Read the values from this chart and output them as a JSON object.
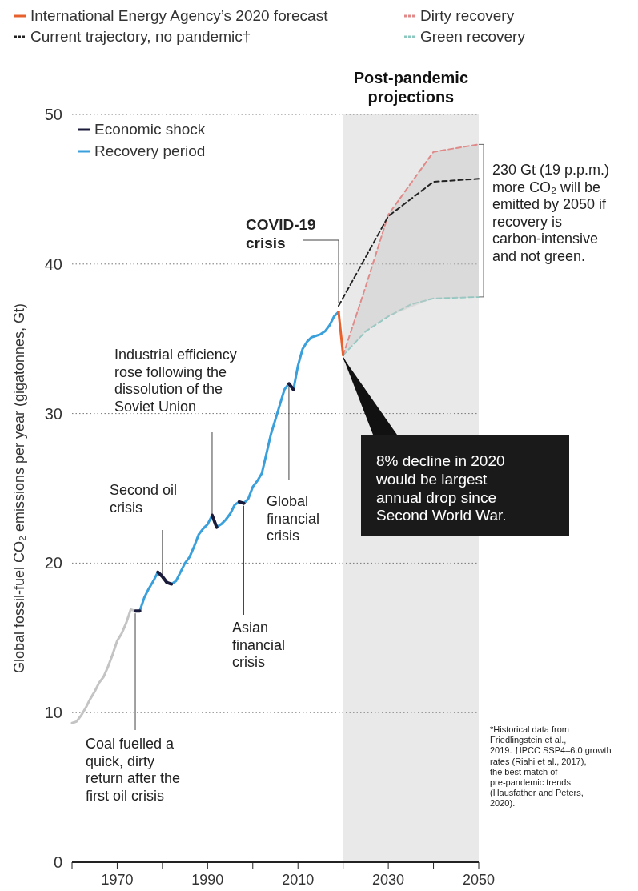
{
  "chart_data": {
    "type": "line",
    "ylabel": "Global fossil-fuel CO₂ emissions per year (gigatonnes, Gt)",
    "xlim": [
      1960,
      2050
    ],
    "ylim": [
      0,
      50
    ],
    "xticks": [
      {
        "value": 1960,
        "label": null
      },
      1970,
      {
        "value": 1980,
        "label": null
      },
      1990,
      {
        "value": 2000,
        "label": null
      },
      2010,
      {
        "value": 2020,
        "label": null
      },
      2030,
      {
        "value": 2040,
        "label": null
      },
      2050
    ],
    "yticks": [
      0,
      10,
      20,
      30,
      40,
      50
    ],
    "grid": "y",
    "legend": "top",
    "series": [
      {
        "name": "International Energy Agency’s 2020 forecast",
        "color": "#e8602c",
        "line_style": "solid",
        "x": [
          2019,
          2020
        ],
        "values": [
          36.8,
          33.9
        ]
      },
      {
        "name": "Current trajectory, no pandemic†",
        "color": "#222222",
        "line_style": "dashed",
        "x": [
          2019,
          2030,
          2040,
          2050
        ],
        "values": [
          37.2,
          43.2,
          45.5,
          45.7
        ]
      },
      {
        "name": "Dirty recovery",
        "color": "#e08a8a",
        "line_style": "dashed",
        "x": [
          2020,
          2025,
          2030,
          2040,
          2050
        ],
        "values": [
          33.9,
          38.5,
          43.3,
          47.5,
          48.0
        ],
        "lower": [
          33.9,
          35.5,
          36.5,
          37.7,
          37.8
        ],
        "upper": [
          33.9,
          38.5,
          43.3,
          47.5,
          48.0
        ]
      },
      {
        "name": "Green recovery",
        "color": "#8cc8c0",
        "line_style": "dashed",
        "x": [
          2020,
          2025,
          2030,
          2035,
          2040,
          2050
        ],
        "values": [
          33.9,
          35.5,
          36.5,
          37.3,
          37.7,
          37.8
        ]
      },
      {
        "name": "Economic shock",
        "color": "#1a1a3a",
        "line_style": "solid",
        "x": [
          1974,
          1975,
          1976,
          1979,
          1980,
          1981,
          1982,
          1983,
          1991,
          1992,
          1993,
          1997,
          1998,
          1999,
          2008,
          2009
        ],
        "values": [
          16.8,
          16.8,
          null,
          19.4,
          19.1,
          18.7,
          18.6,
          null,
          23.2,
          22.4,
          null,
          24.1,
          24.0,
          null,
          32.0,
          31.6
        ]
      },
      {
        "name": "Recovery period",
        "color": "#3aa0dc",
        "line_style": "solid",
        "x": [
          1975,
          1976,
          1977,
          1978,
          1979,
          1980,
          1981,
          1982,
          1983,
          1984,
          1985,
          1986,
          1987,
          1988,
          1989,
          1990,
          1991,
          1992,
          1993,
          1994,
          1995,
          1996,
          1997,
          1998,
          1999,
          2000,
          2001,
          2002,
          2003,
          2004,
          2005,
          2006,
          2007,
          2008,
          2009,
          2010,
          2011,
          2012,
          2013,
          2014,
          2015,
          2016,
          2017,
          2018,
          2019
        ],
        "values": [
          16.8,
          17.7,
          18.3,
          18.8,
          19.4,
          null,
          null,
          18.6,
          18.8,
          19.4,
          20.0,
          20.4,
          21.1,
          21.9,
          22.3,
          22.6,
          23.2,
          22.4,
          22.6,
          22.9,
          23.3,
          23.9,
          24.1,
          24.0,
          24.3,
          25.1,
          25.5,
          26.0,
          27.3,
          28.6,
          29.6,
          30.6,
          31.6,
          32.0,
          31.6,
          33.2,
          34.3,
          34.8,
          35.1,
          35.2,
          35.3,
          35.5,
          35.9,
          36.5,
          36.8
        ]
      },
      {
        "color": "#c4c4c4",
        "line_style": "solid",
        "x": [
          1960,
          1961,
          1962,
          1963,
          1964,
          1965,
          1966,
          1967,
          1968,
          1969,
          1970,
          1971,
          1972,
          1973,
          1974
        ],
        "values": [
          9.3,
          9.4,
          9.8,
          10.3,
          10.9,
          11.4,
          12.0,
          12.4,
          13.1,
          13.9,
          14.8,
          15.3,
          16.0,
          16.9,
          16.8
        ]
      }
    ],
    "bands": [
      {
        "axis": "x",
        "from": 2020,
        "to": 2050,
        "label": "Post-pandemic projections",
        "color": "#e9e9e9"
      }
    ],
    "annotations": [
      {
        "text": "Coal fuelled a quick, dirty return after the first oil crisis",
        "x": 1974,
        "y": 16.8
      },
      {
        "text": "Second oil crisis",
        "x": 1980,
        "y": 19.1
      },
      {
        "text": "Industrial efficiency rose following the dissolution of the Soviet Union",
        "x": 1991,
        "y": 23.2
      },
      {
        "text": "Asian financial crisis",
        "x": 1998,
        "y": 24.0
      },
      {
        "text": "Global financial crisis",
        "x": 2008,
        "y": 32.0
      },
      {
        "text": "COVID-19 crisis",
        "x": 2019,
        "y": 37.2
      },
      {
        "text": "8% decline in 2020 would be largest annual drop since Second World War.",
        "x": 2020,
        "y": 33.9
      },
      "230 Gt (19 p.p.m.) more CO₂ will be emitted by 2050 if recovery is carbon-intensive and not green.",
      "*Historical data from Friedlingstein et al., 2019. †IPCC SSP4–6.0 growth rates (Riahi et al., 2017), the best match of pre-pandemic trends (Hausfather and Peters, 2020)."
    ]
  }
}
